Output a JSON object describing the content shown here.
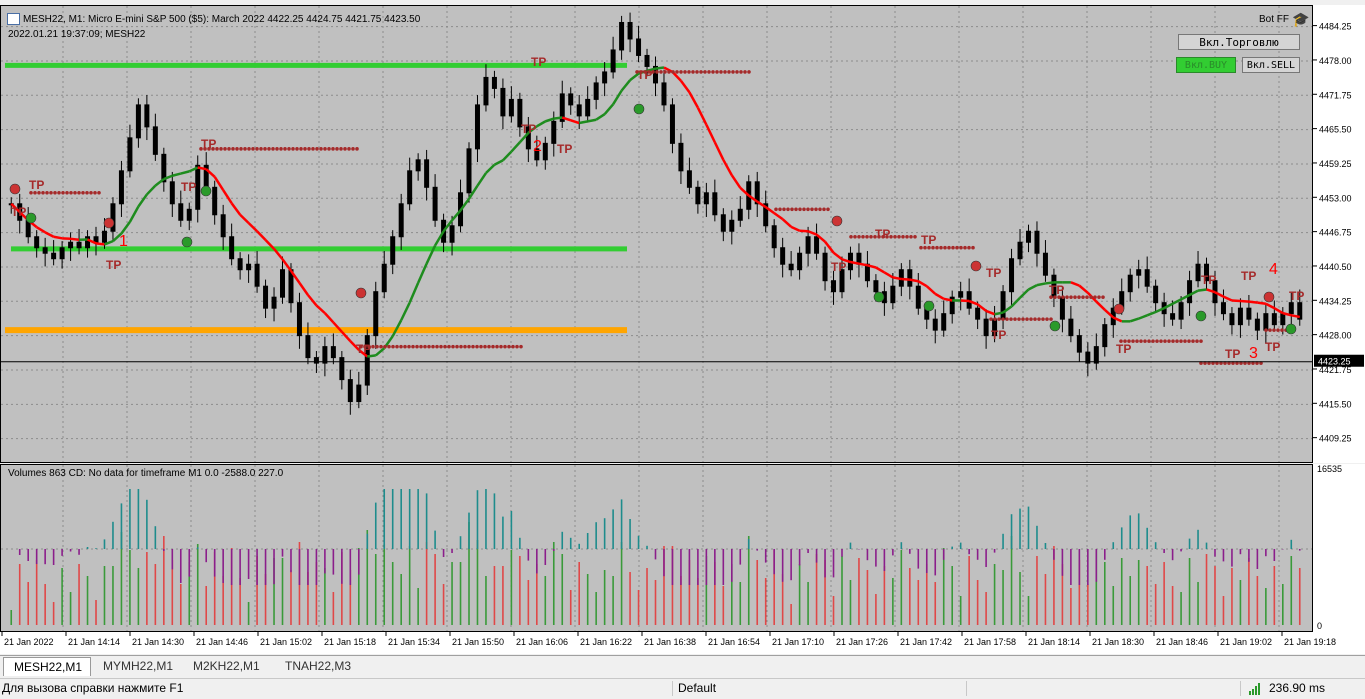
{
  "header": {
    "symbol_line": "MESH22, M1:  Micro E-mini S&P 500 ($5): March 2022   4422.25 4424.75 4421.75 4423.50",
    "datetime_line": "2022.01.21 19:37:09; MESH22",
    "ea_name": "Bot FF"
  },
  "buttons": {
    "trade": "Вкл.Торговлю",
    "buy": "Вкл.BUY",
    "sell": "Вкл.SELL"
  },
  "price_scale": {
    "labels": [
      "4484.25",
      "4478.00",
      "4471.75",
      "4465.50",
      "4459.25",
      "4453.00",
      "4446.75",
      "4440.50",
      "4434.25",
      "4428.00",
      "4421.75",
      "4415.50",
      "4409.25"
    ],
    "current_price": "4423.25"
  },
  "volume": {
    "title": "Volumes 863 CD: No data for timeframe M1 0.0 -2588.0 227.0",
    "scale_top": "16535",
    "scale_bottom": "0"
  },
  "time_axis": [
    "21 Jan 2022",
    "21 Jan 14:14",
    "21 Jan 14:30",
    "21 Jan 14:46",
    "21 Jan 15:02",
    "21 Jan 15:18",
    "21 Jan 15:34",
    "21 Jan 15:50",
    "21 Jan 16:06",
    "21 Jan 16:22",
    "21 Jan 16:38",
    "21 Jan 16:54",
    "21 Jan 17:10",
    "21 Jan 17:26",
    "21 Jan 17:42",
    "21 Jan 17:58",
    "21 Jan 18:14",
    "21 Jan 18:30",
    "21 Jan 18:46",
    "21 Jan 19:02",
    "21 Jan 19:18"
  ],
  "levels": {
    "green_upper": 4477.2,
    "green_lower": 4443.8,
    "orange": 4429.0
  },
  "tp_label": "TP",
  "annotations": [
    "1",
    "2",
    "3",
    "4"
  ],
  "tabs": [
    "MESH22,M1",
    "MYMH22,M1",
    "M2KH22,M1",
    "TNAH22,M3"
  ],
  "status": {
    "help": "Для вызова справки нажмите F1",
    "profile": "Default",
    "ping": "236.90 ms"
  },
  "colors": {
    "chart_bg": "#c0c0c0",
    "up_level": "#32cd32",
    "orange_level": "#ffa500",
    "ma_down": "#ff0000",
    "ma_up": "#1e8c1e",
    "tp_dots": "#a52a2a",
    "vol_teal": "#1e8c8c",
    "vol_purple": "#8b1e8b"
  },
  "chart_data": {
    "type": "candlestick",
    "price_range": [
      4405.0,
      4488.0
    ],
    "series_ohlc_close_path": [
      4452,
      4449,
      4446,
      4444,
      4443,
      4442,
      4444,
      4445,
      4444,
      4446,
      4445,
      4447,
      4452,
      4458,
      4464,
      4470,
      4466,
      4461,
      4456,
      4452,
      4449,
      4451,
      4459,
      4455,
      4450,
      4446,
      4442,
      4440,
      4441,
      4437,
      4433,
      4435,
      4440,
      4434,
      4428,
      4424,
      4423,
      4426,
      4424,
      4420,
      4416,
      4419,
      4428,
      4436,
      4441,
      4446,
      4452,
      4458,
      4460,
      4455,
      4449,
      4445,
      4448,
      4454,
      4462,
      4470,
      4475,
      4473,
      4468,
      4471,
      4466,
      4462,
      4460,
      4463,
      4467,
      4472,
      4470,
      4468,
      4471,
      4474,
      4476,
      4480,
      4485,
      4482,
      4479,
      4477,
      4474,
      4470,
      4463,
      4458,
      4455,
      4452,
      4454,
      4450,
      4447,
      4449,
      4451,
      4456,
      4452,
      4448,
      4444,
      4441,
      4440,
      4443,
      4446,
      4443,
      4438,
      4436,
      4440,
      4443,
      4441,
      4438,
      4436,
      4434,
      4437,
      4440,
      4437,
      4433,
      4431,
      4429,
      4432,
      4435,
      4436,
      4433,
      4431,
      4428,
      4431,
      4436,
      4442,
      4445,
      4447,
      4443,
      4439,
      4435,
      4431,
      4428,
      4425,
      4423,
      4426,
      4430,
      4433,
      4436,
      4439,
      4440,
      4437,
      4434,
      4432,
      4431,
      4434,
      4438,
      4441,
      4438,
      4434,
      4432,
      4430,
      4433,
      4431,
      4429,
      4432,
      4430,
      4432,
      4434,
      4431
    ]
  }
}
